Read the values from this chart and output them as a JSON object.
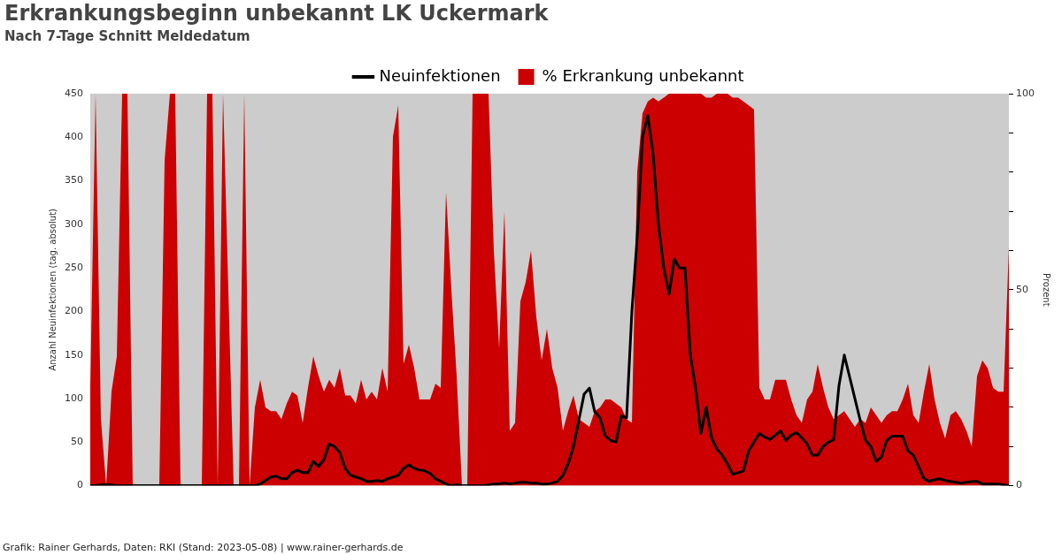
{
  "chart_data": {
    "type": "line",
    "title": "Erkrankungsbeginn unbekannt LK Uckermark",
    "subtitle": "Nach 7-Tage Schnitt Meldedatum",
    "ylabel": "Anzahl Neuinfektionen (tag. absolut)",
    "y2label": "Prozent",
    "legend": "top",
    "marker": "none",
    "categories": [
      null,
      null,
      null,
      null,
      null,
      null,
      null,
      null,
      null,
      null,
      null,
      null,
      null,
      null,
      null,
      null,
      null,
      null,
      null,
      null,
      null,
      null,
      null,
      null,
      null,
      null,
      null,
      null,
      null,
      null,
      null,
      null,
      null,
      null,
      null,
      null,
      null,
      null,
      null,
      null,
      null,
      null,
      null,
      null,
      null,
      null,
      null,
      null,
      null,
      null,
      null,
      null,
      null,
      null,
      null,
      null,
      null,
      null,
      null,
      null,
      null,
      null,
      null,
      null,
      null,
      null,
      null,
      null,
      null,
      null,
      null,
      null,
      null,
      null,
      null,
      null,
      null,
      null,
      null,
      null,
      null,
      null,
      null,
      null,
      null,
      null,
      null,
      null,
      null,
      null,
      null,
      null,
      null,
      null,
      null,
      null,
      null,
      null,
      null,
      null,
      null,
      null,
      null,
      null,
      null,
      null,
      null,
      null,
      null,
      null,
      null,
      null,
      null,
      null,
      null,
      null,
      null,
      null,
      null,
      null,
      null,
      null,
      null,
      null,
      null,
      null,
      null,
      null,
      null,
      null,
      null,
      null,
      null,
      null,
      null,
      null,
      null,
      null,
      null,
      null,
      null,
      null,
      null,
      null,
      null,
      null,
      null,
      null,
      null,
      null,
      null,
      null,
      null,
      null,
      null,
      null,
      null,
      null,
      null,
      null,
      null,
      null,
      null,
      null,
      null,
      null,
      null,
      null,
      null,
      null,
      null,
      null,
      null,
      null
    ],
    "series": [
      {
        "name": "Neuinfektionen",
        "color": "#000000",
        "values": [
          0,
          0,
          1,
          1,
          1,
          0,
          0,
          0,
          0,
          0,
          0,
          0,
          0,
          0,
          0,
          0,
          0,
          0,
          0,
          0,
          0,
          0,
          0,
          0,
          0,
          0,
          0,
          0,
          0,
          0,
          0,
          0,
          2,
          6,
          10,
          11,
          8,
          8,
          15,
          18,
          15,
          15,
          28,
          22,
          30,
          48,
          45,
          38,
          20,
          12,
          10,
          8,
          5,
          5,
          6,
          5,
          8,
          10,
          12,
          20,
          24,
          20,
          18,
          17,
          14,
          8,
          5,
          2,
          0,
          1,
          0,
          0,
          0,
          0,
          0,
          1,
          2,
          2,
          3,
          2,
          3,
          4,
          4,
          3,
          3,
          2,
          2,
          3,
          5,
          12,
          25,
          45,
          75,
          105,
          112,
          85,
          78,
          57,
          52,
          50,
          80,
          78,
          200,
          285,
          400,
          425,
          380,
          300,
          250,
          220,
          260,
          250,
          250,
          150,
          112,
          60,
          90,
          55,
          42,
          35,
          25,
          13,
          15,
          17,
          40,
          50,
          60,
          56,
          53,
          58,
          63,
          52,
          58,
          61,
          55,
          48,
          35,
          35,
          45,
          50,
          53,
          115,
          150,
          125,
          100,
          75,
          52,
          45,
          28,
          33,
          52,
          57,
          57,
          57,
          40,
          35,
          22,
          8,
          5,
          7,
          8,
          6,
          5,
          4,
          3,
          4,
          5,
          5,
          2,
          2,
          2,
          2,
          1,
          0
        ]
      },
      {
        "name": "% Erkrankung unbekannt",
        "type": "area",
        "axis": "y2",
        "color": "#cc0000",
        "values": [
          25,
          100,
          17,
          0,
          24,
          33,
          100,
          100,
          0,
          0,
          0,
          0,
          0,
          0,
          83,
          100,
          100,
          0,
          0,
          0,
          0,
          0,
          100,
          100,
          0,
          100,
          50,
          0,
          0,
          100,
          0,
          20,
          27,
          20,
          19,
          19,
          17,
          21,
          24,
          23,
          16,
          25,
          33,
          28,
          24,
          27,
          25,
          30,
          23,
          23,
          21,
          27,
          22,
          24,
          22,
          30,
          24,
          89,
          97,
          31,
          36,
          30,
          22,
          22,
          22,
          26,
          25,
          75,
          50,
          28,
          0,
          0,
          100,
          100,
          100,
          100,
          60,
          35,
          70,
          14,
          16,
          47,
          52,
          60,
          43,
          32,
          40,
          30,
          25,
          14,
          19,
          23,
          17,
          16,
          15,
          19,
          20,
          22,
          22,
          21,
          20,
          17,
          16,
          80,
          95,
          98,
          99,
          98,
          99,
          100,
          100,
          100,
          100,
          100,
          100,
          100,
          99,
          99,
          100,
          100,
          100,
          99,
          99,
          98,
          97,
          96,
          25,
          22,
          22,
          27,
          27,
          27,
          22,
          18,
          16,
          22,
          24,
          31,
          25,
          20,
          17,
          18,
          19,
          17,
          15,
          17,
          16,
          20,
          18,
          16,
          18,
          19,
          19,
          22,
          26,
          18,
          16,
          24,
          31,
          22,
          16,
          12,
          18,
          19,
          17,
          14,
          10,
          28,
          32,
          30,
          25,
          24,
          24,
          61
        ]
      }
    ],
    "ylim": [
      0,
      450
    ],
    "yticks": [
      0,
      50,
      100,
      150,
      200,
      250,
      300,
      350,
      400,
      450
    ],
    "y2lim": [
      0,
      100
    ],
    "y2ticks": [
      0,
      {
        "value": 10,
        "label": null
      },
      {
        "value": 20,
        "label": null
      },
      {
        "value": 30,
        "label": null
      },
      {
        "value": 40,
        "label": null
      },
      50,
      {
        "value": 60,
        "label": null
      },
      {
        "value": 70,
        "label": null
      },
      {
        "value": 80,
        "label": null
      },
      {
        "value": 90,
        "label": null
      },
      100
    ],
    "annotations": [
      "Grafik: Rainer Gerhards, Daten: RKI (Stand: 2023-05-08) | www.rainer-gerhards.de"
    ]
  }
}
